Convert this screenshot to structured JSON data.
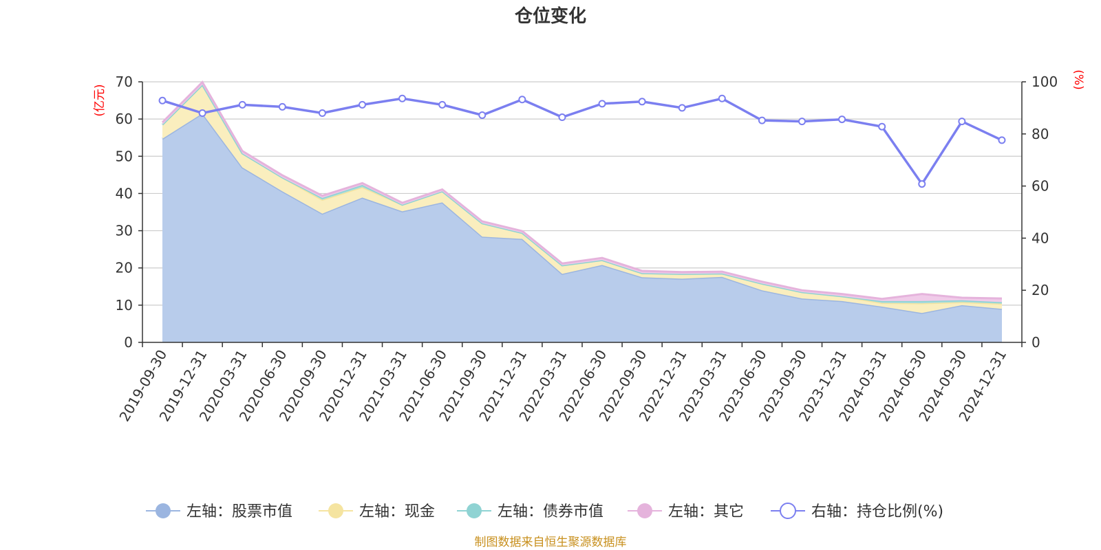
{
  "chart_data": {
    "type": "area",
    "title": "仓位变化",
    "left_axis_unit": "(亿元)",
    "right_axis_unit": "(%)",
    "left_ylim": [
      0,
      70
    ],
    "left_ticks": [
      0,
      10,
      20,
      30,
      40,
      50,
      60,
      70
    ],
    "right_ylim": [
      0,
      100
    ],
    "right_ticks": [
      0,
      20,
      40,
      60,
      80,
      100
    ],
    "categories": [
      "2019-09-30",
      "2019-12-31",
      "2020-03-31",
      "2020-06-30",
      "2020-09-30",
      "2020-12-31",
      "2021-03-31",
      "2021-06-30",
      "2021-09-30",
      "2021-12-31",
      "2022-03-31",
      "2022-06-30",
      "2022-09-30",
      "2022-12-31",
      "2023-03-31",
      "2023-06-30",
      "2023-09-30",
      "2023-12-31",
      "2024-03-31",
      "2024-06-30",
      "2024-09-30",
      "2024-12-31"
    ],
    "series": [
      {
        "name": "左轴：股票市值",
        "axis": "left",
        "stack": true,
        "color": "#9bb5e0",
        "fill": "#b8cceb",
        "values": [
          54.7,
          61.5,
          47.0,
          40.6,
          34.6,
          38.9,
          35.2,
          37.6,
          28.4,
          27.8,
          18.4,
          20.8,
          17.5,
          17.1,
          17.6,
          14.0,
          11.8,
          11.1,
          9.6,
          7.9,
          10.0,
          9.0
        ]
      },
      {
        "name": "左轴：现金",
        "axis": "left",
        "stack": true,
        "color": "#f5e4a0",
        "fill": "#faeebe",
        "values": [
          3.8,
          7.7,
          3.8,
          3.7,
          3.7,
          2.8,
          1.8,
          3.0,
          3.6,
          1.6,
          2.3,
          1.3,
          1.1,
          1.3,
          0.9,
          1.8,
          1.7,
          1.3,
          1.0,
          2.6,
          0.8,
          1.4
        ]
      },
      {
        "name": "左轴：债券市值",
        "axis": "left",
        "stack": true,
        "color": "#8fd3d3",
        "fill": "#a8dcdc",
        "values": [
          0.0,
          0.0,
          0.0,
          0.0,
          0.5,
          0.6,
          0.0,
          0.0,
          0.0,
          0.0,
          0.0,
          0.0,
          0.0,
          0.0,
          0.0,
          0.0,
          0.0,
          0.0,
          0.5,
          0.6,
          0.5,
          0.4
        ]
      },
      {
        "name": "左轴：其它",
        "axis": "left",
        "stack": true,
        "color": "#e5b3dc",
        "fill": "#f0cbe9",
        "values": [
          0.6,
          0.7,
          0.6,
          0.6,
          0.6,
          0.5,
          0.5,
          0.5,
          0.5,
          0.5,
          0.5,
          0.6,
          0.6,
          0.5,
          0.5,
          0.5,
          0.5,
          0.6,
          0.6,
          1.9,
          0.7,
          1.0
        ]
      },
      {
        "name": "右轴：持仓比例(%)",
        "axis": "right",
        "stack": false,
        "color": "#7b7ff0",
        "values": [
          92.8,
          88.0,
          91.2,
          90.4,
          88.0,
          91.2,
          93.6,
          91.2,
          87.2,
          93.2,
          86.4,
          91.6,
          92.4,
          90.0,
          93.6,
          85.2,
          84.8,
          85.6,
          82.8,
          60.8,
          84.8,
          77.6
        ]
      }
    ]
  },
  "footer": {
    "source": "制图数据来自恒生聚源数据库"
  }
}
